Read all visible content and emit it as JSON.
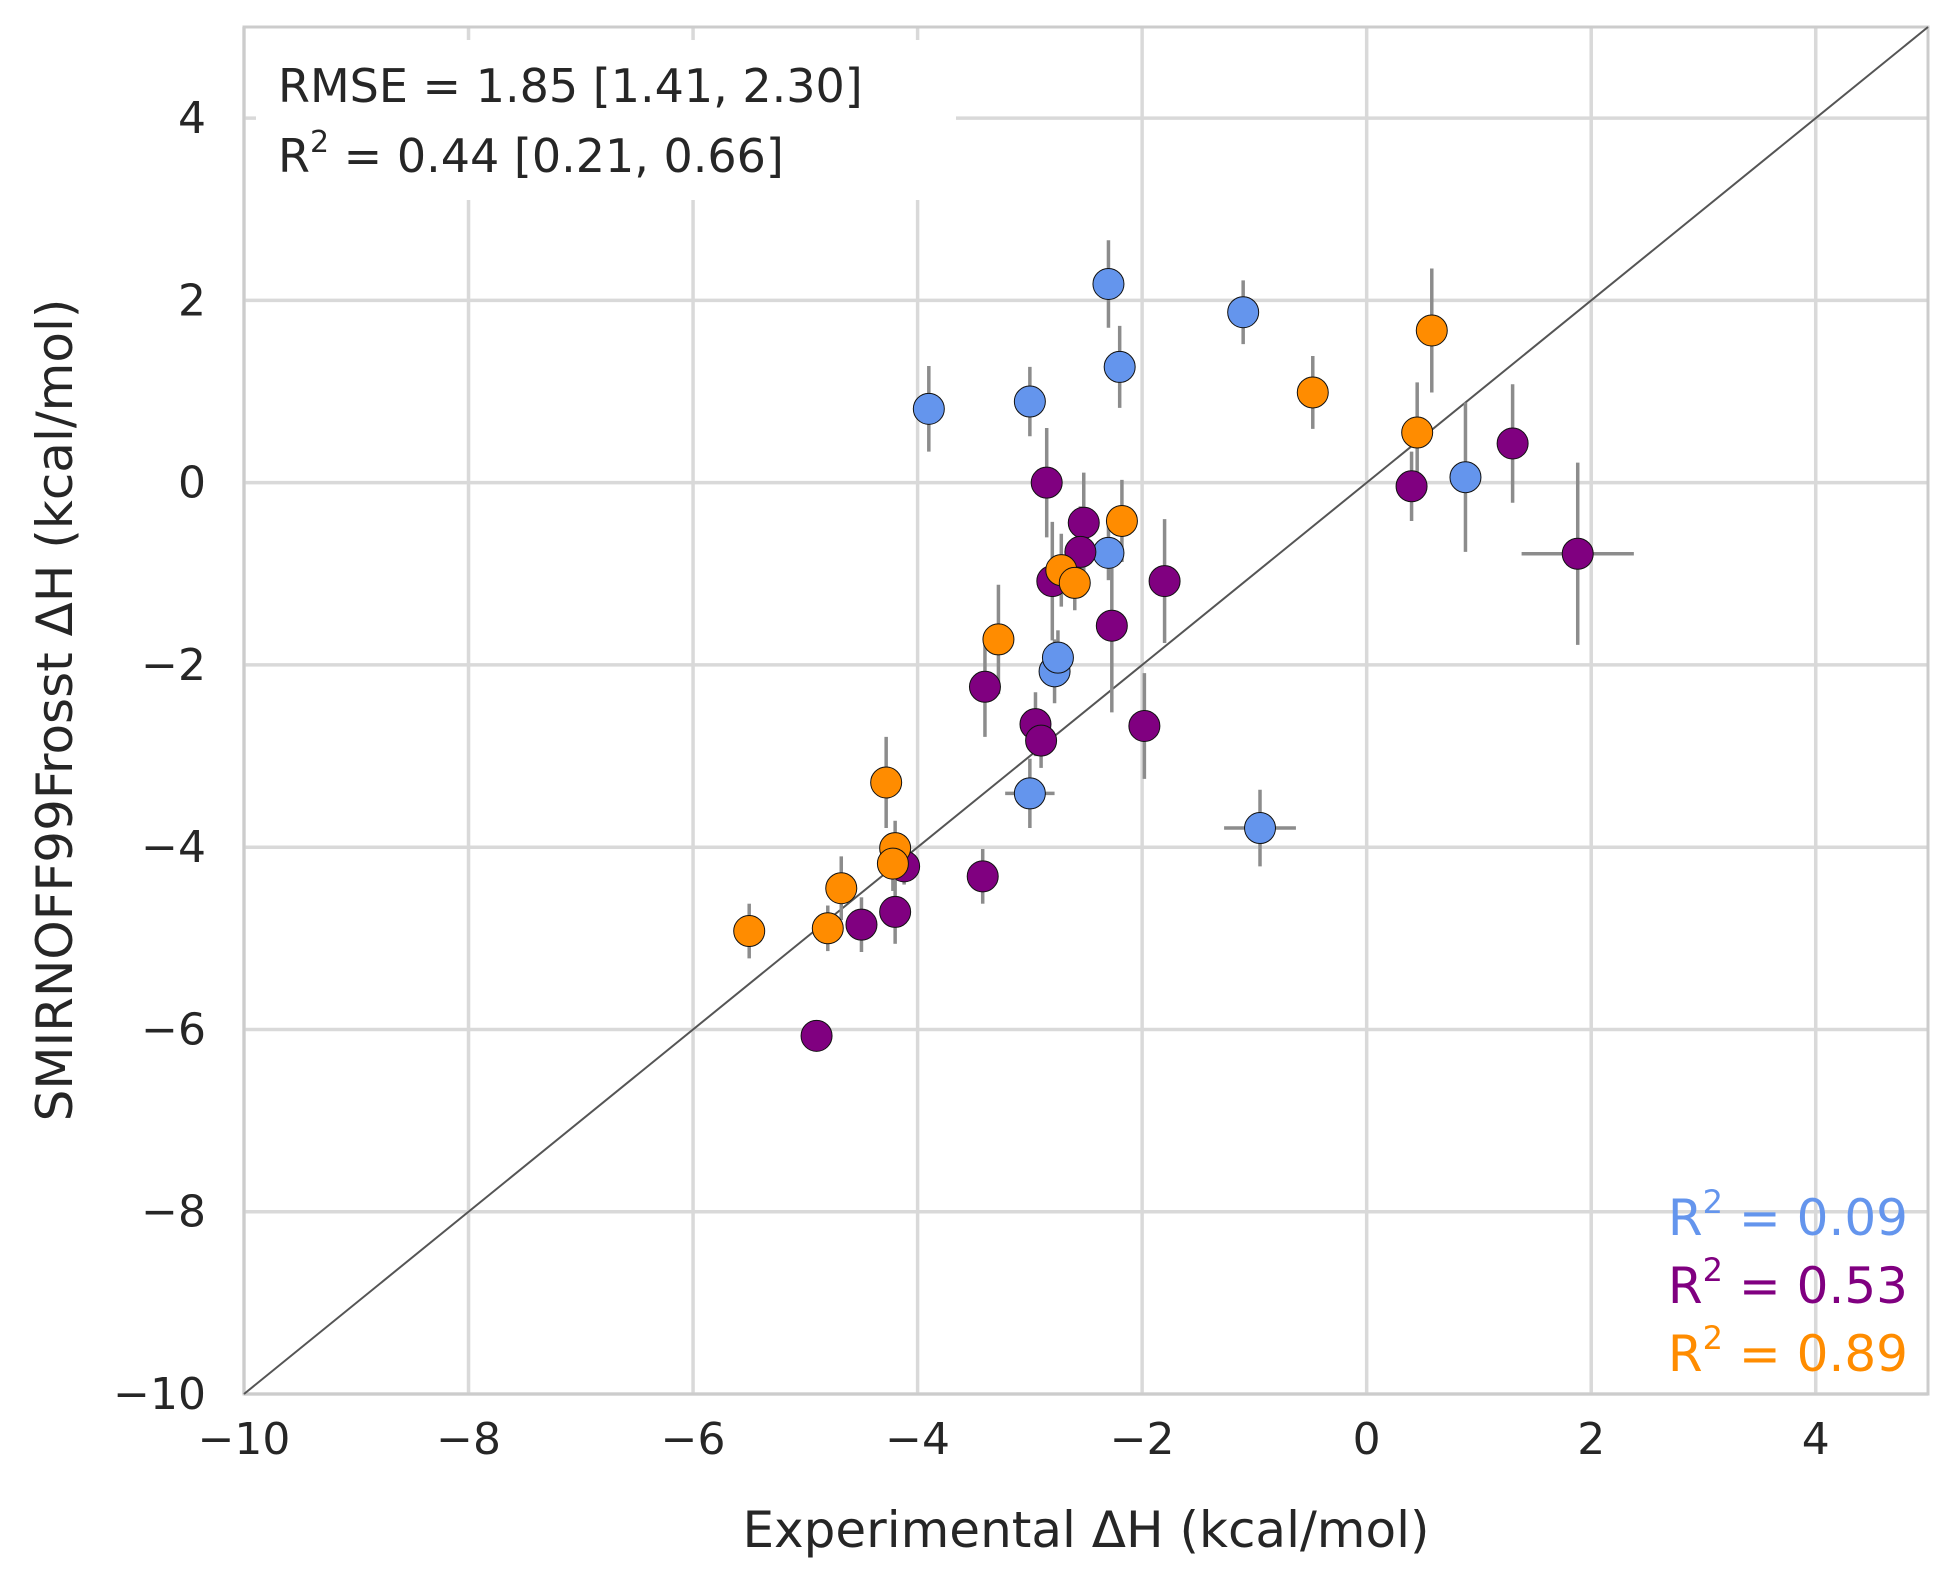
{
  "chart_data": {
    "type": "scatter",
    "xlabel": "Experimental ΔH (kcal/mol)",
    "ylabel": "SMIRNOFF99Frosst ΔH (kcal/mol)",
    "xlim": [
      -10,
      5
    ],
    "ylim": [
      -10,
      5
    ],
    "xticks": [
      -10,
      -8,
      -6,
      -4,
      -2,
      0,
      2,
      4
    ],
    "yticks": [
      -10,
      -8,
      -6,
      -4,
      -2,
      0,
      2,
      4
    ],
    "xtick_labels": [
      "−10",
      "−8",
      "−6",
      "−4",
      "−2",
      "0",
      "2",
      "4"
    ],
    "ytick_labels": [
      "−10",
      "−8",
      "−6",
      "−4",
      "−2",
      "0",
      "2",
      "4"
    ],
    "grid": true,
    "identity_line": true,
    "stats": {
      "rmse_line": "RMSE = 1.85 [1.41, 2.30]",
      "r2_prefix": "R",
      "r2_sup": "2",
      "r2_rest": " = 0.44 [0.21, 0.66]"
    },
    "series_r2": [
      {
        "prefix": "R",
        "sup": "2",
        "rest": " = 0.09",
        "color": "#6495ed"
      },
      {
        "prefix": "R",
        "sup": "2",
        "rest": " = 0.53",
        "color": "#800080"
      },
      {
        "prefix": "R",
        "sup": "2",
        "rest": " = 0.89",
        "color": "#ff8c00"
      }
    ],
    "series": [
      {
        "name": "blue",
        "color": "#6495ed",
        "points": [
          {
            "x": -2.3,
            "y": 2.18,
            "yerr": 0.48,
            "xerr": 0
          },
          {
            "x": -1.1,
            "y": 1.87,
            "yerr": 0.35,
            "xerr": 0
          },
          {
            "x": -2.2,
            "y": 1.27,
            "yerr": 0.45,
            "xerr": 0
          },
          {
            "x": -3.9,
            "y": 0.81,
            "yerr": 0.47,
            "xerr": 0
          },
          {
            "x": -3.0,
            "y": 0.89,
            "yerr": 0.38,
            "xerr": 0
          },
          {
            "x": 0.88,
            "y": 0.06,
            "yerr": 0.82,
            "xerr": 0
          },
          {
            "x": -2.3,
            "y": -0.77,
            "yerr": 0.3,
            "xerr": 0
          },
          {
            "x": -2.78,
            "y": -2.07,
            "yerr": 0.35,
            "xerr": 0
          },
          {
            "x": -2.75,
            "y": -1.92,
            "yerr": 0.3,
            "xerr": 0
          },
          {
            "x": -3.0,
            "y": -3.41,
            "yerr": 0.38,
            "xerr": 0.22
          },
          {
            "x": -0.95,
            "y": -3.79,
            "yerr": 0.42,
            "xerr": 0.32
          }
        ]
      },
      {
        "name": "purple",
        "color": "#800080",
        "points": [
          {
            "x": -2.85,
            "y": 0.0,
            "yerr": 0.6,
            "xerr": 0
          },
          {
            "x": -2.52,
            "y": -0.44,
            "yerr": 0.55,
            "xerr": 0
          },
          {
            "x": -2.55,
            "y": -0.76,
            "yerr": 0.5,
            "xerr": 0
          },
          {
            "x": -2.8,
            "y": -1.08,
            "yerr": 0.65,
            "xerr": 0
          },
          {
            "x": -1.8,
            "y": -1.08,
            "yerr": 0.68,
            "xerr": 0
          },
          {
            "x": -2.27,
            "y": -1.57,
            "yerr": 0.95,
            "xerr": 0
          },
          {
            "x": -3.4,
            "y": -2.24,
            "yerr": 0.55,
            "xerr": 0
          },
          {
            "x": -2.95,
            "y": -2.65,
            "yerr": 0.35,
            "xerr": 0
          },
          {
            "x": -2.9,
            "y": -2.83,
            "yerr": 0.3,
            "xerr": 0
          },
          {
            "x": -1.98,
            "y": -2.67,
            "yerr": 0.58,
            "xerr": 0
          },
          {
            "x": -3.42,
            "y": -4.32,
            "yerr": 0.3,
            "xerr": 0
          },
          {
            "x": -4.12,
            "y": -4.21,
            "yerr": 0.2,
            "xerr": 0
          },
          {
            "x": -4.2,
            "y": -4.71,
            "yerr": 0.35,
            "xerr": 0
          },
          {
            "x": -4.5,
            "y": -4.85,
            "yerr": 0.3,
            "xerr": 0
          },
          {
            "x": -4.9,
            "y": -6.07,
            "yerr": 0.15,
            "xerr": 0
          },
          {
            "x": 0.4,
            "y": -0.04,
            "yerr": 0.38,
            "xerr": 0
          },
          {
            "x": 1.3,
            "y": 0.43,
            "yerr": 0.65,
            "xerr": 0
          },
          {
            "x": 1.88,
            "y": -0.78,
            "yerr": 1.0,
            "xerr": 0.5
          }
        ]
      },
      {
        "name": "orange",
        "color": "#ff8c00",
        "points": [
          {
            "x": -0.48,
            "y": 0.99,
            "yerr": 0.4,
            "xerr": 0
          },
          {
            "x": 0.58,
            "y": 1.67,
            "yerr": 0.68,
            "xerr": 0
          },
          {
            "x": 0.45,
            "y": 0.55,
            "yerr": 0.55,
            "xerr": 0
          },
          {
            "x": -2.18,
            "y": -0.42,
            "yerr": 0.45,
            "xerr": 0
          },
          {
            "x": -2.72,
            "y": -0.96,
            "yerr": 0.4,
            "xerr": 0
          },
          {
            "x": -2.6,
            "y": -1.1,
            "yerr": 0.3,
            "xerr": 0
          },
          {
            "x": -3.28,
            "y": -1.72,
            "yerr": 0.6,
            "xerr": 0
          },
          {
            "x": -4.28,
            "y": -3.29,
            "yerr": 0.5,
            "xerr": 0
          },
          {
            "x": -4.2,
            "y": -4.01,
            "yerr": 0.3,
            "xerr": 0
          },
          {
            "x": -4.22,
            "y": -4.18,
            "yerr": 0.3,
            "xerr": 0
          },
          {
            "x": -4.68,
            "y": -4.45,
            "yerr": 0.35,
            "xerr": 0
          },
          {
            "x": -4.8,
            "y": -4.89,
            "yerr": 0.25,
            "xerr": 0
          },
          {
            "x": -5.5,
            "y": -4.92,
            "yerr": 0.3,
            "xerr": 0
          }
        ]
      }
    ]
  }
}
